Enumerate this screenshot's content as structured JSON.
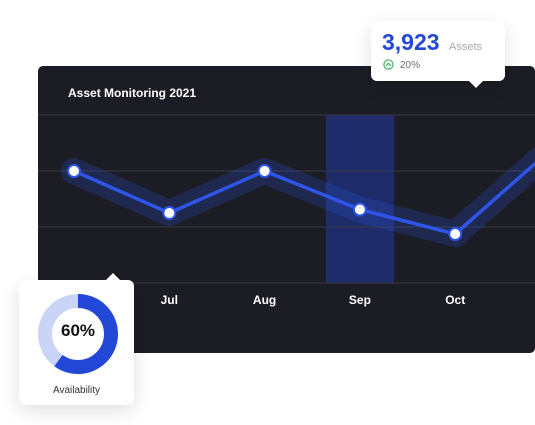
{
  "chart_data": {
    "type": "line",
    "title": "Asset Monitoring 2021",
    "categories": [
      "",
      "Jul",
      "Aug",
      "Sep",
      "Oct",
      ""
    ],
    "values": [
      160,
      100,
      160,
      105,
      70,
      190
    ],
    "highlight_category": "Sep",
    "ylim": [
      0,
      240
    ],
    "grid": true
  },
  "summary": {
    "assets_value": "3,923",
    "assets_label": "Assets",
    "growth": "20%"
  },
  "availability": {
    "percent_text": "60%",
    "fraction": 0.6,
    "label": "Availability"
  },
  "colors": {
    "panel": "#1c1c24",
    "line": "#2f55e8",
    "highlight": "#1e2c6a",
    "grid": "#3a3a46",
    "donut_fill": "#2348d8",
    "donut_track": "#c9d4f7",
    "accent_text": "#2348d8",
    "growth_green": "#3fae55"
  }
}
